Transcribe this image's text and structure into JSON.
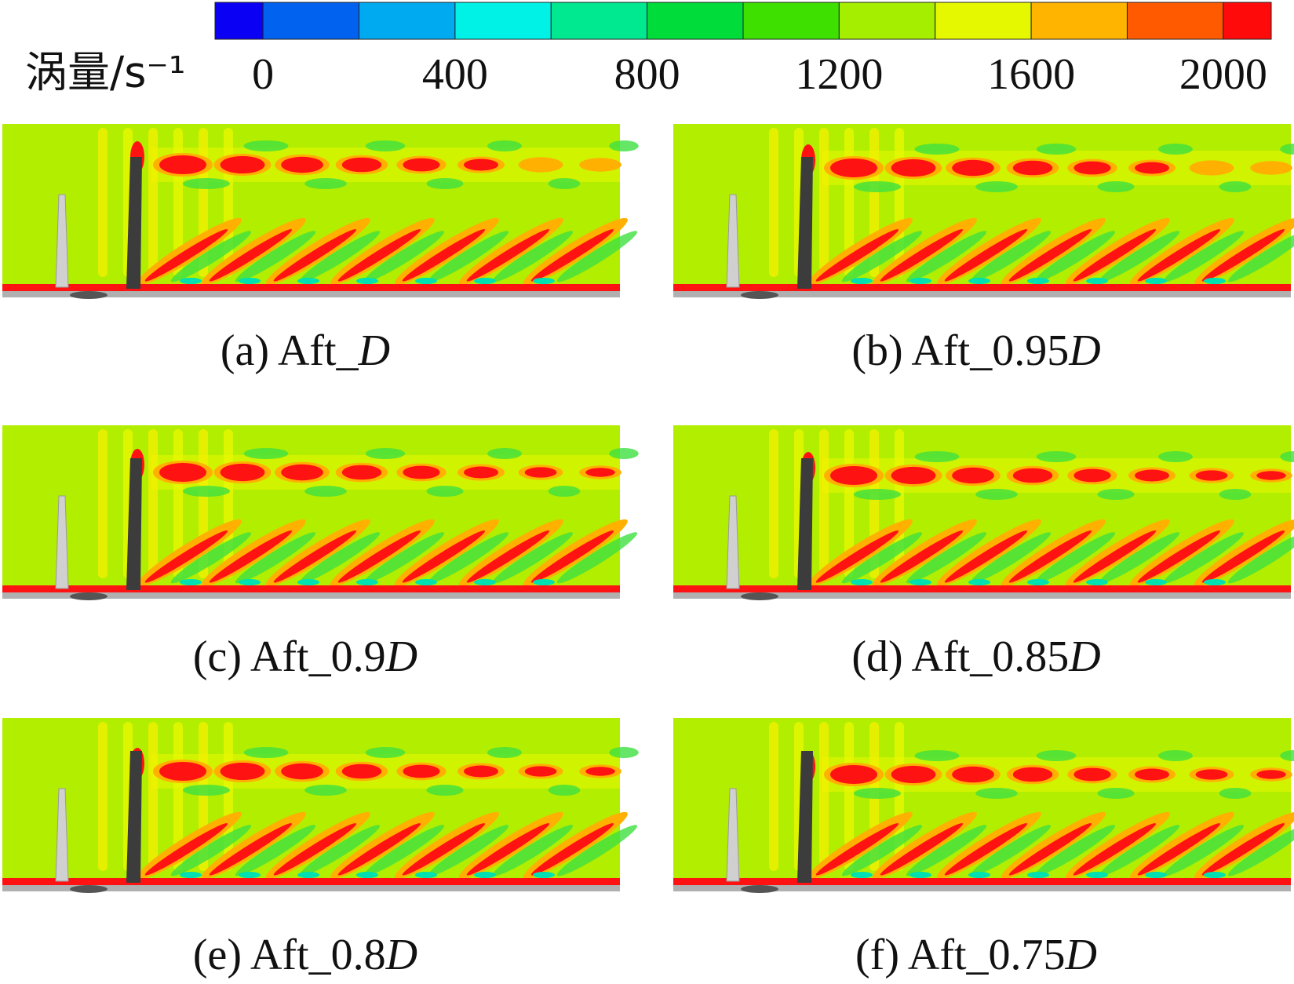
{
  "colorbar": {
    "label": "涡量/s⁻¹",
    "range": [
      -100,
      2100
    ],
    "levels": [
      0,
      200,
      400,
      600,
      800,
      1000,
      1200,
      1400,
      1600,
      1800,
      2000
    ],
    "colors": [
      "#0a00f4",
      "#0062ee",
      "#00aaf0",
      "#00f2e6",
      "#00e890",
      "#00dc3a",
      "#3ee000",
      "#a6ee00",
      "#e6f800",
      "#ffb400",
      "#ff5a00",
      "#ff0a0a"
    ],
    "ticks": [
      0,
      400,
      800,
      1200,
      1600,
      2000
    ]
  },
  "panels": [
    {
      "label": "(a) Aft_",
      "var": "D"
    },
    {
      "label": "(b) Aft_0.95",
      "var": "D"
    },
    {
      "label": "(c) Aft_0.9",
      "var": "D"
    },
    {
      "label": "(d) Aft_0.85",
      "var": "D"
    },
    {
      "label": "(e) Aft_0.8",
      "var": "D"
    },
    {
      "label": "(f) Aft_0.75",
      "var": "D"
    }
  ]
}
